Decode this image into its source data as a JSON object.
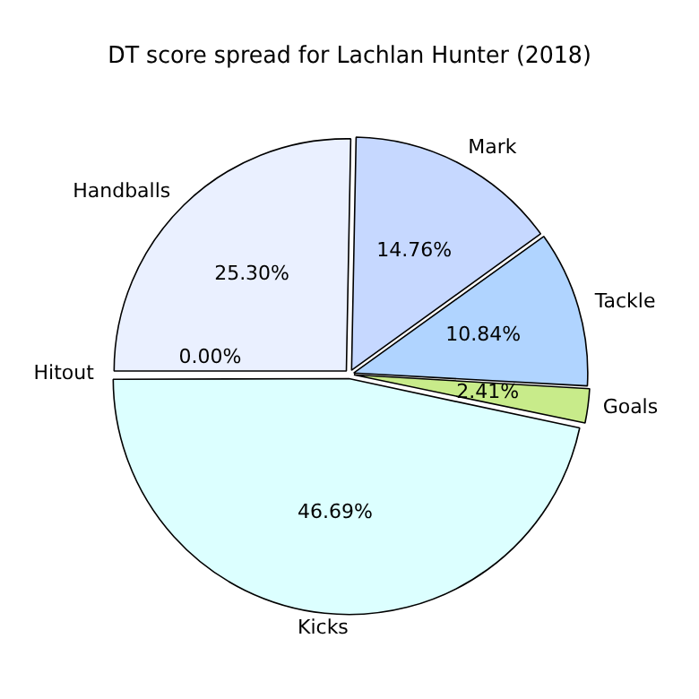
{
  "chart_data": {
    "type": "pie",
    "title": "DT score spread for Lachlan Hunter (2018)",
    "categories": [
      "Handballs",
      "Mark",
      "Tackle",
      "Goals",
      "Kicks",
      "Hitout"
    ],
    "values": [
      25.3,
      14.76,
      10.84,
      2.41,
      46.69,
      0.0
    ],
    "value_labels": [
      "25.30%",
      "14.76%",
      "10.84%",
      "2.41%",
      "46.69%",
      "0.00%"
    ],
    "colors": [
      "#eaf0ff",
      "#c6d8ff",
      "#b0d4ff",
      "#c8eb8a",
      "#dcffff",
      "#e8e8ff"
    ],
    "legend": false
  }
}
